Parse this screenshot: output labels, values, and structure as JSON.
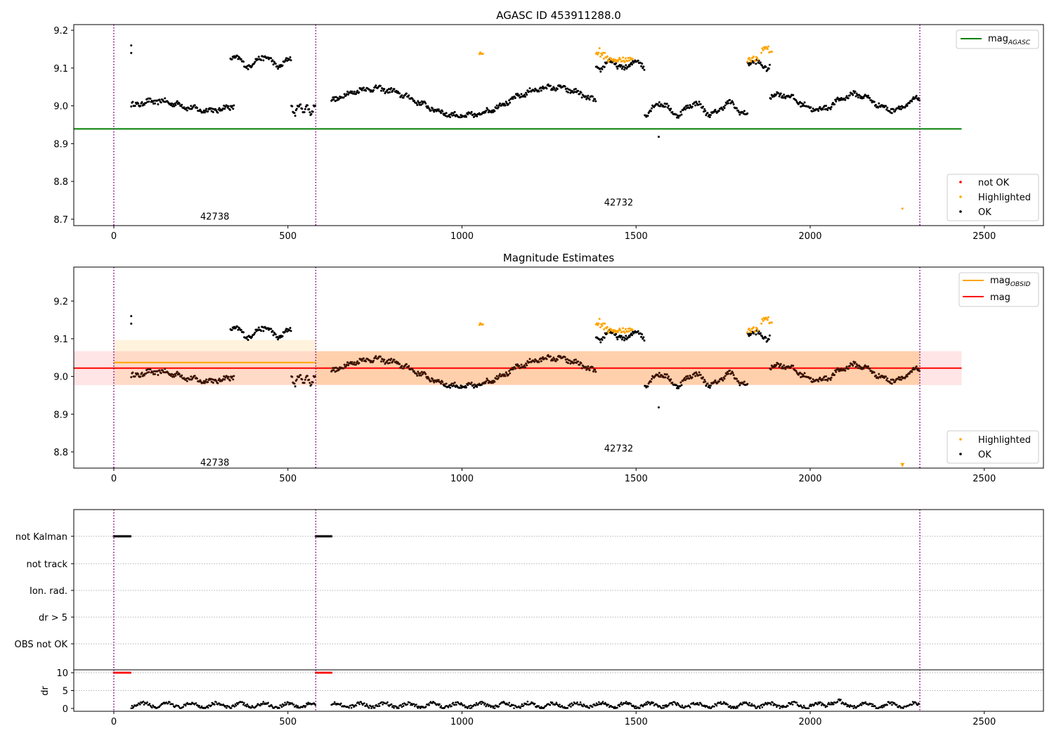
{
  "chart_data": [
    {
      "id": "agasc",
      "type": "scatter",
      "title": "AGASC ID 453911288.0",
      "xlim": [
        -115,
        2670
      ],
      "ylim": [
        8.683,
        9.215
      ],
      "xticks": [
        0,
        500,
        1000,
        1500,
        2000,
        2500
      ],
      "yticks": [
        8.7,
        8.8,
        8.9,
        9.0,
        9.1,
        9.2
      ],
      "vlines": [
        0,
        580,
        2315
      ],
      "obsid_labels": [
        {
          "text": "42738",
          "x": 290,
          "y": 8.708
        },
        {
          "text": "42732",
          "x": 1450,
          "y": 8.745
        }
      ],
      "hlines": [
        {
          "name": "mag_AGASC",
          "y": 8.939,
          "x0": -115,
          "x1": 2435,
          "color": "#008000"
        }
      ],
      "segments": [
        {
          "start": 50,
          "end": 345,
          "base": 9.0,
          "amp": 0.012,
          "wiggle": 0.006
        },
        {
          "start": 335,
          "end": 510,
          "base": 9.118,
          "amp": 0.012,
          "wiggle": 0.006
        },
        {
          "start": 510,
          "end": 580,
          "base": 8.992,
          "amp": 0.01,
          "wiggle": 0.006
        },
        {
          "start": 625,
          "end": 1385,
          "base": 9.01,
          "amp": 0.04,
          "wiggle": 0.006
        },
        {
          "start": 1385,
          "end": 1525,
          "base": 9.108,
          "amp": 0.01,
          "wiggle": 0.006
        },
        {
          "start": 1525,
          "end": 1820,
          "base": 8.992,
          "amp": 0.015,
          "wiggle": 0.006
        },
        {
          "start": 1820,
          "end": 1885,
          "base": 9.11,
          "amp": 0.01,
          "wiggle": 0.006
        },
        {
          "start": 1885,
          "end": 2315,
          "base": 9.01,
          "amp": 0.02,
          "wiggle": 0.006
        }
      ],
      "highlighted": [
        {
          "start": 1385,
          "end": 1420,
          "base": 9.15,
          "wiggle": 0.012
        },
        {
          "start": 1420,
          "end": 1490,
          "base": 9.122,
          "wiggle": 0.006
        },
        {
          "start": 1820,
          "end": 1850,
          "base": 9.125,
          "wiggle": 0.008
        },
        {
          "start": 1860,
          "end": 1890,
          "base": 9.15,
          "wiggle": 0.01
        },
        {
          "start": 1050,
          "end": 1060,
          "base": 9.14,
          "wiggle": 0.003
        }
      ],
      "outliers": [
        {
          "x": 50,
          "y": 9.16
        },
        {
          "x": 50,
          "y": 9.14
        },
        {
          "x": 1565,
          "y": 8.918
        },
        {
          "x": 2265,
          "y": 8.728,
          "state": "highlighted"
        }
      ],
      "legends": [
        {
          "position": "top-right",
          "entries": [
            {
              "label": "mag",
              "sub": "AGASC",
              "kind": "line",
              "color": "#008000"
            }
          ]
        },
        {
          "position": "bottom-right",
          "entries": [
            {
              "label": "not OK",
              "kind": "dot",
              "color": "#ff0000"
            },
            {
              "label": "Highlighted",
              "kind": "dot",
              "color": "#ffa500"
            },
            {
              "label": "OK",
              "kind": "dot",
              "color": "#000000"
            }
          ]
        }
      ]
    },
    {
      "id": "estimates",
      "type": "scatter",
      "title": "Magnitude Estimates",
      "xlim": [
        -115,
        2670
      ],
      "ylim": [
        8.757,
        9.29
      ],
      "xticks": [
        0,
        500,
        1000,
        1500,
        2000,
        2500
      ],
      "yticks": [
        8.8,
        8.9,
        9.0,
        9.1,
        9.2
      ],
      "vlines": [
        0,
        580,
        2315
      ],
      "obsid_labels": [
        {
          "text": "42738",
          "x": 290,
          "y": 8.773
        },
        {
          "text": "42732",
          "x": 1450,
          "y": 8.81
        }
      ],
      "bands": [
        {
          "x0": 0,
          "x1": 580,
          "y0": 8.978,
          "y1": 9.097,
          "color": "#ffa500",
          "opacity": 0.13
        },
        {
          "x0": 580,
          "x1": 2315,
          "y0": 8.978,
          "y1": 9.067,
          "color": "#ffa500",
          "opacity": 0.25
        },
        {
          "x0": -115,
          "x1": 2435,
          "y0": 8.977,
          "y1": 9.067,
          "color": "#ff0000",
          "opacity": 0.1
        }
      ],
      "hlines": [
        {
          "name": "mag_OBSID",
          "y": 9.037,
          "x0": 0,
          "x1": 580,
          "color": "#ffa500"
        },
        {
          "name": "mag",
          "y": 9.022,
          "x0": -115,
          "x1": 2435,
          "color": "#ff0000"
        }
      ],
      "legends": [
        {
          "position": "top-right",
          "entries": [
            {
              "label": "mag",
              "sub": "OBSID",
              "kind": "line",
              "color": "#ffa500"
            },
            {
              "label": "mag",
              "kind": "line",
              "color": "#ff0000"
            }
          ]
        },
        {
          "position": "bottom-right",
          "entries": [
            {
              "label": "Highlighted",
              "kind": "dot",
              "color": "#ffa500"
            },
            {
              "label": "OK",
              "kind": "dot",
              "color": "#000000"
            }
          ]
        }
      ],
      "outlier_marker": {
        "x": 2265,
        "y": 8.765,
        "marker": "triangle-down"
      }
    },
    {
      "id": "flags",
      "type": "scatter",
      "xlim": [
        -115,
        2670
      ],
      "categories": [
        "not Kalman",
        "not track",
        "Ion. rad.",
        "dr > 5",
        "OBS not OK"
      ],
      "vlines": [
        0,
        580,
        2315
      ],
      "not_kalman_ranges": [
        [
          0,
          48
        ],
        [
          580,
          625
        ]
      ],
      "xticks": [
        0,
        500,
        1000,
        1500,
        2000,
        2500
      ]
    },
    {
      "id": "dr",
      "type": "scatter",
      "ylabel": "dr",
      "xlim": [
        -115,
        2670
      ],
      "ylim": [
        -0.8,
        10.8
      ],
      "yticks": [
        0,
        5,
        10
      ],
      "xticks": [
        0,
        500,
        1000,
        1500,
        2000,
        2500
      ],
      "vlines": [
        0,
        580,
        2315
      ],
      "capped_ranges": [
        [
          0,
          48
        ],
        [
          580,
          625
        ]
      ],
      "dr_range": [
        0,
        2.8
      ],
      "ranges": [
        [
          50,
          580
        ],
        [
          625,
          2315
        ]
      ]
    }
  ]
}
